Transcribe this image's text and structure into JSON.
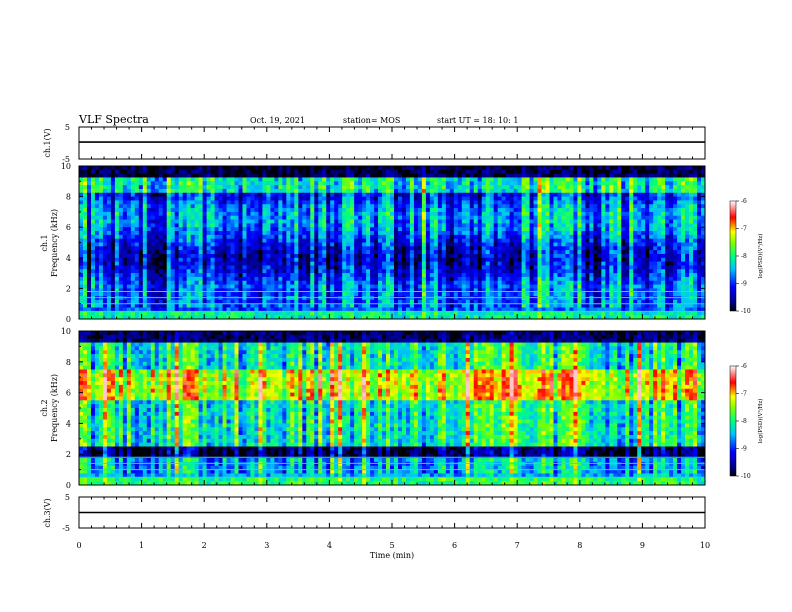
{
  "header": {
    "title": "VLF Spectra",
    "date": "Oct. 19, 2021",
    "station": "station= MOS",
    "start": "start  UT  =   18: 10: 1"
  },
  "chart_data": [
    {
      "type": "line",
      "panel": "ch1-waveform",
      "ylabel": "ch.1(V)",
      "ylim": [
        -5,
        5
      ],
      "yticks": [
        "5",
        "-5"
      ],
      "xlim": [
        0,
        10
      ],
      "series": [
        {
          "values_level": 0.3
        }
      ]
    },
    {
      "type": "heatmap",
      "panel": "ch1-spectrogram",
      "ylabel_line1": "ch.1",
      "ylabel_line2": "Frequency (kHz)",
      "ylim": [
        0,
        10
      ],
      "yticks": [
        "0",
        "2",
        "4",
        "6",
        "8",
        "10"
      ],
      "xlim": [
        0,
        10
      ],
      "colorbar": {
        "label": "log(PSD)(V²/Hz)",
        "range": [
          -10,
          -6
        ],
        "ticks": [
          "-6",
          "-7",
          "-8",
          "-9",
          "-10"
        ]
      }
    },
    {
      "type": "heatmap",
      "panel": "ch2-spectrogram",
      "ylabel_line1": "ch.2",
      "ylabel_line2": "Frequency (kHz)",
      "ylim": [
        0,
        10
      ],
      "yticks": [
        "0",
        "2",
        "4",
        "6",
        "8",
        "10"
      ],
      "xlim": [
        0,
        10
      ],
      "colorbar": {
        "label": "log(PSD)(V²/Hz)",
        "range": [
          -10,
          -6
        ],
        "ticks": [
          "-6",
          "-7",
          "-8",
          "-9",
          "-10"
        ]
      }
    },
    {
      "type": "line",
      "panel": "ch3-waveform",
      "ylabel": "ch.3(V)",
      "ylim": [
        -5,
        5
      ],
      "yticks": [
        "5",
        "-5"
      ],
      "xlim": [
        0,
        10
      ],
      "xlabel": "Time  (min)",
      "xticks": [
        "0",
        "1",
        "2",
        "3",
        "4",
        "5",
        "6",
        "7",
        "8",
        "9",
        "10"
      ],
      "series": [
        {
          "values_level": 0.0
        }
      ]
    }
  ],
  "colors": {
    "colormap": [
      "#000000",
      "#0000ff",
      "#00bfff",
      "#00ff7f",
      "#ffff00",
      "#ff0000",
      "#ffffff"
    ],
    "axis": "#000000"
  }
}
